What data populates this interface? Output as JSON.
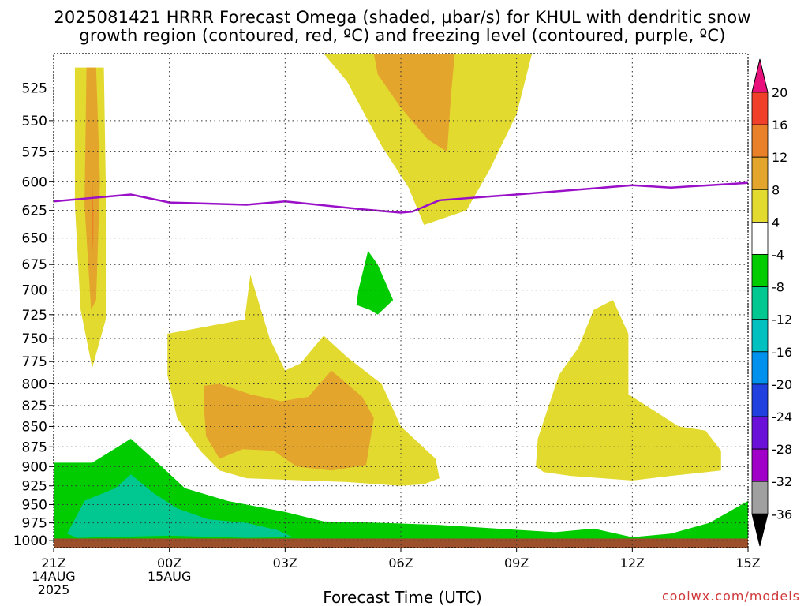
{
  "title_line1": "2025081421 HRRR Forecast Omega (shaded, µbar/s) for KHUL with dendritic snow",
  "title_line2": "growth region (contoured, red, ºC) and freezing level (contoured, purple, ºC)",
  "credit": "coolwx.com/models",
  "colors": {
    "c_pos20": "#e8107a",
    "c_16_20": "#f0402a",
    "c_12_16": "#e9812a",
    "c_8_12": "#e3a52c",
    "c_4_8": "#e3da30",
    "c_neg4_4": "#ffffff",
    "c_neg8_neg4": "#00cc00",
    "c_neg12_neg8": "#00c890",
    "c_neg16_neg12": "#00c0c0",
    "c_neg20_neg16": "#0090ee",
    "c_neg24_neg20": "#2040e0",
    "c_neg28_neg24": "#6a10d8",
    "c_neg32_neg28": "#a000c8",
    "c_neg36_neg32": "#a0a0a0",
    "c_neg36": "#000000",
    "freezing_level": "#9a10c8",
    "ground": "#9b4f2a"
  },
  "chart_data": {
    "type": "heatmap",
    "title": "2025081421 HRRR Forecast Omega (shaded, µbar/s) for KHUL with dendritic snow growth region (contoured, red, ºC) and freezing level (contoured, purple, ºC)",
    "xlabel": "Forecast Time (UTC)",
    "ylabel": "",
    "x_range_hours": [
      0,
      18
    ],
    "y_range_mb": [
      500,
      1010
    ],
    "y_scale": "log-pressure (inverted)",
    "grid": true,
    "x_ticks": [
      {
        "hour": 0,
        "label": "21Z",
        "sub1": "14AUG",
        "sub2": "2025"
      },
      {
        "hour": 3,
        "label": "00Z",
        "sub1": "15AUG",
        "sub2": ""
      },
      {
        "hour": 6,
        "label": "03Z",
        "sub1": "",
        "sub2": ""
      },
      {
        "hour": 9,
        "label": "06Z",
        "sub1": "",
        "sub2": ""
      },
      {
        "hour": 12,
        "label": "09Z",
        "sub1": "",
        "sub2": ""
      },
      {
        "hour": 15,
        "label": "12Z",
        "sub1": "",
        "sub2": ""
      },
      {
        "hour": 18,
        "label": "15Z",
        "sub1": "",
        "sub2": ""
      }
    ],
    "y_ticks": [
      525,
      550,
      575,
      600,
      625,
      650,
      675,
      700,
      725,
      750,
      775,
      800,
      825,
      850,
      875,
      900,
      925,
      950,
      975,
      1000
    ],
    "colorbar": {
      "labels": [
        "20",
        "16",
        "12",
        "8",
        "4",
        "-4",
        "-8",
        "-12",
        "-16",
        "-20",
        "-24",
        "-28",
        "-32",
        "-36"
      ],
      "bands": [
        "c_16_20",
        "c_12_16",
        "c_8_12",
        "c_4_8",
        "c_neg4_4",
        "c_neg8_neg4",
        "c_neg12_neg8",
        "c_neg16_neg12",
        "c_neg20_neg16",
        "c_neg24_neg20",
        "c_neg28_neg24",
        "c_neg32_neg28",
        "c_neg36_neg32"
      ],
      "top_triangle": "c_pos20",
      "bottom_triangle": "c_neg36"
    },
    "regions": [
      {
        "level": "c_4_8",
        "points": [
          [
            0.55,
            510
          ],
          [
            1.3,
            510
          ],
          [
            1.35,
            600
          ],
          [
            1.35,
            730
          ],
          [
            1.0,
            782
          ],
          [
            0.7,
            720
          ],
          [
            0.55,
            620
          ]
        ]
      },
      {
        "level": "c_8_12",
        "points": [
          [
            0.85,
            510
          ],
          [
            1.1,
            510
          ],
          [
            1.2,
            600
          ],
          [
            1.1,
            710
          ],
          [
            0.97,
            720
          ],
          [
            0.8,
            620
          ]
        ]
      },
      {
        "level": "c_12_16",
        "points": [
          [
            1.0,
            595
          ],
          [
            1.03,
            630
          ],
          [
            1.02,
            665
          ],
          [
            0.98,
            630
          ]
        ]
      },
      {
        "level": "c_4_8",
        "points": [
          [
            7.0,
            500
          ],
          [
            12.4,
            500
          ],
          [
            12.0,
            545
          ],
          [
            11.3,
            590
          ],
          [
            10.7,
            625
          ],
          [
            9.6,
            638
          ],
          [
            9.2,
            605
          ],
          [
            8.5,
            570
          ],
          [
            7.6,
            520
          ]
        ]
      },
      {
        "level": "c_8_12",
        "points": [
          [
            8.3,
            500
          ],
          [
            10.4,
            500
          ],
          [
            10.3,
            530
          ],
          [
            10.2,
            575
          ],
          [
            9.7,
            565
          ],
          [
            9.0,
            540
          ],
          [
            8.4,
            515
          ]
        ]
      },
      {
        "level": "c_4_8",
        "points": [
          [
            2.95,
            745
          ],
          [
            3.6,
            740
          ],
          [
            4.95,
            730
          ],
          [
            5.1,
            685
          ],
          [
            5.6,
            750
          ],
          [
            6.0,
            785
          ],
          [
            6.4,
            777
          ],
          [
            7.0,
            747
          ],
          [
            7.6,
            770
          ],
          [
            8.5,
            800
          ],
          [
            9.0,
            850
          ],
          [
            9.9,
            890
          ],
          [
            10.0,
            915
          ],
          [
            9.6,
            923
          ],
          [
            9.0,
            925
          ],
          [
            7.6,
            920
          ],
          [
            5.0,
            915
          ],
          [
            4.3,
            905
          ],
          [
            3.8,
            880
          ],
          [
            3.2,
            840
          ],
          [
            2.95,
            790
          ]
        ]
      },
      {
        "level": "c_8_12",
        "points": [
          [
            3.9,
            802
          ],
          [
            4.3,
            800
          ],
          [
            5.1,
            812
          ],
          [
            5.9,
            820
          ],
          [
            6.6,
            815
          ],
          [
            7.2,
            785
          ],
          [
            8.0,
            815
          ],
          [
            8.3,
            840
          ],
          [
            8.1,
            898
          ],
          [
            7.2,
            905
          ],
          [
            6.3,
            900
          ],
          [
            5.7,
            880
          ],
          [
            4.9,
            878
          ],
          [
            4.3,
            890
          ],
          [
            3.95,
            862
          ],
          [
            3.9,
            830
          ]
        ]
      },
      {
        "level": "c_4_8",
        "points": [
          [
            12.5,
            900
          ],
          [
            12.55,
            865
          ],
          [
            13.1,
            790
          ],
          [
            13.6,
            760
          ],
          [
            14.0,
            720
          ],
          [
            14.5,
            710
          ],
          [
            14.9,
            745
          ],
          [
            14.9,
            812
          ],
          [
            15.8,
            838
          ],
          [
            16.2,
            850
          ],
          [
            16.9,
            855
          ],
          [
            17.3,
            880
          ],
          [
            17.3,
            905
          ],
          [
            16.0,
            912
          ],
          [
            15.0,
            918
          ],
          [
            13.4,
            912
          ],
          [
            12.7,
            907
          ]
        ]
      },
      {
        "level": "c_neg8_neg4",
        "points": [
          [
            7.9,
            700
          ],
          [
            8.15,
            662
          ],
          [
            8.4,
            675
          ],
          [
            8.8,
            710
          ],
          [
            8.4,
            725
          ],
          [
            8.2,
            720
          ],
          [
            7.85,
            715
          ]
        ]
      },
      {
        "level": "c_neg8_neg4",
        "points": [
          [
            0,
            895
          ],
          [
            1.0,
            895
          ],
          [
            2.0,
            865
          ],
          [
            2.8,
            900
          ],
          [
            3.4,
            928
          ],
          [
            4.5,
            945
          ],
          [
            6.0,
            960
          ],
          [
            7.0,
            973
          ],
          [
            8.5,
            975
          ],
          [
            10.0,
            978
          ],
          [
            11.5,
            983
          ],
          [
            13.0,
            988
          ],
          [
            14.0,
            983
          ],
          [
            15.0,
            995
          ],
          [
            16.0,
            990
          ],
          [
            17.0,
            975
          ],
          [
            18.0,
            945
          ],
          [
            18,
            1005
          ],
          [
            0,
            1005
          ]
        ]
      },
      {
        "level": "c_neg12_neg8",
        "points": [
          [
            0.35,
            990
          ],
          [
            0.8,
            945
          ],
          [
            1.6,
            928
          ],
          [
            2.0,
            910
          ],
          [
            2.6,
            935
          ],
          [
            3.2,
            955
          ],
          [
            4.0,
            970
          ],
          [
            5.0,
            975
          ],
          [
            5.8,
            985
          ],
          [
            6.2,
            995
          ],
          [
            5.0,
            996
          ],
          [
            3.0,
            993
          ],
          [
            0.6,
            996
          ]
        ]
      }
    ],
    "freezing_level_mb": [
      [
        0,
        617
      ],
      [
        2,
        611
      ],
      [
        3,
        618
      ],
      [
        5,
        620
      ],
      [
        6,
        617
      ],
      [
        8,
        624
      ],
      [
        9,
        627
      ],
      [
        9.3,
        626
      ],
      [
        10,
        616
      ],
      [
        12,
        611
      ],
      [
        15,
        603
      ],
      [
        16,
        605
      ],
      [
        18,
        601
      ]
    ],
    "ground_mb": 997
  }
}
